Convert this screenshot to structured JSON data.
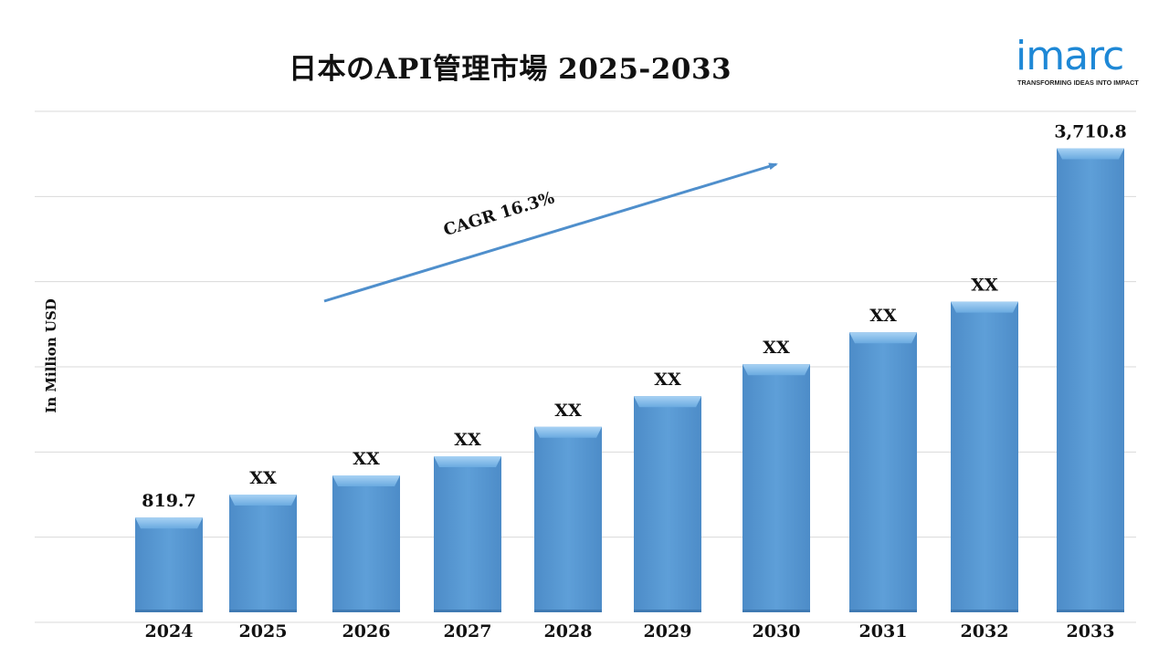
{
  "title": "日本のAPI管理市場 2025-2033",
  "logo": {
    "word": "imarc",
    "tagline": "TRANSFORMING IDEAS INTO IMPACT",
    "color": "#1e88d6"
  },
  "annotation": {
    "text": "CAGR 16.3%",
    "arrow_color": "#4f8fcc"
  },
  "colors": {
    "bar": "#5b9bd5",
    "bar_top": "#8fc3ef",
    "grid": "#d9d9d9"
  },
  "chart_data": {
    "type": "bar",
    "title": "日本のAPI管理市場 2025-2033",
    "xlabel": "",
    "ylabel": "In Million USD",
    "categories": [
      "2024",
      "2025",
      "2026",
      "2027",
      "2028",
      "2029",
      "2030",
      "2031",
      "2032",
      "2033"
    ],
    "values": [
      819.7,
      1000,
      1150,
      1300,
      1530,
      1770,
      2020,
      2270,
      2510,
      3710.8
    ],
    "data_labels": [
      "819.7",
      "XX",
      "XX",
      "XX",
      "XX",
      "XX",
      "XX",
      "XX",
      "XX",
      "3,710.8"
    ],
    "ylim": [
      0,
      4000
    ],
    "grid": true,
    "legend": "none"
  }
}
